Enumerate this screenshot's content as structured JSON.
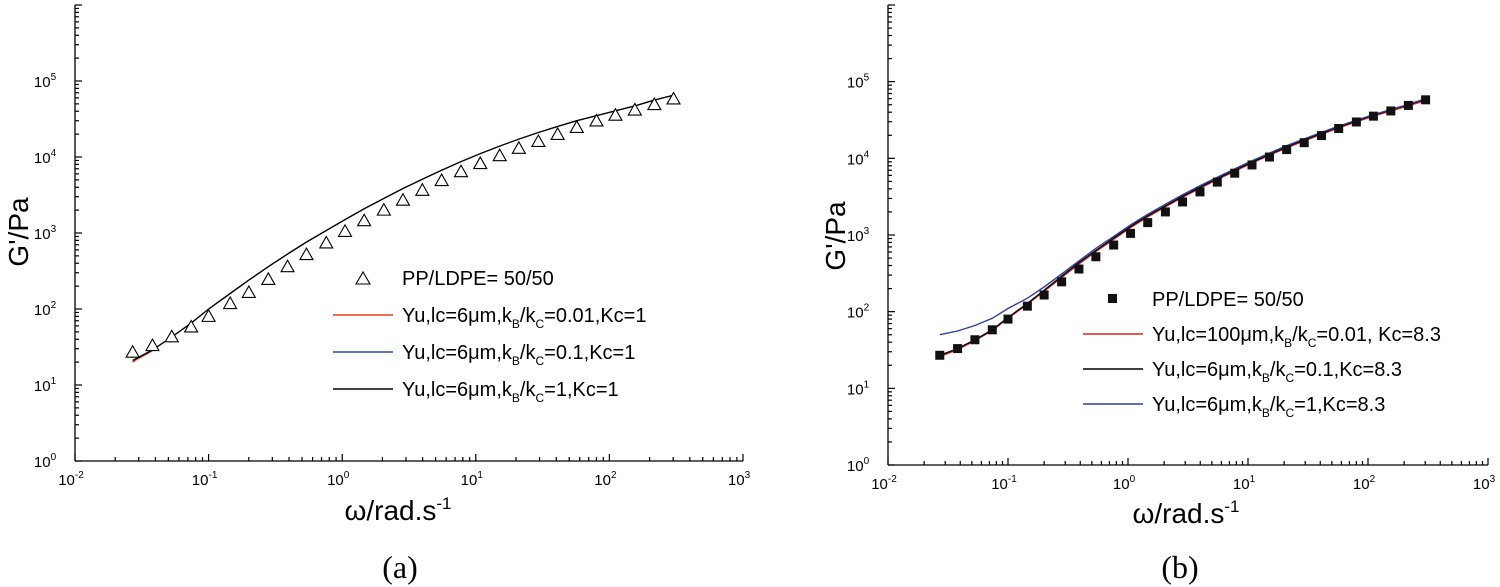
{
  "chart_data": [
    {
      "type": "scatter",
      "panel_label": "(a)",
      "xscale": "log",
      "yscale": "log",
      "xlim": [
        0.01,
        1000
      ],
      "ylim": [
        1,
        1000000
      ],
      "xlabel": "ω/rad.s",
      "xlabel_sup": "-1",
      "ylabel": "G'/Pa",
      "x_ticks": [
        {
          "base": "10",
          "exp": "-2"
        },
        {
          "base": "10",
          "exp": "-1"
        },
        {
          "base": "10",
          "exp": "0"
        },
        {
          "base": "10",
          "exp": "1"
        },
        {
          "base": "10",
          "exp": "2"
        },
        {
          "base": "10",
          "exp": "3"
        }
      ],
      "y_ticks": [
        {
          "base": "10",
          "exp": "0"
        },
        {
          "base": "10",
          "exp": "1"
        },
        {
          "base": "10",
          "exp": "2"
        },
        {
          "base": "10",
          "exp": "3"
        },
        {
          "base": "10",
          "exp": "4"
        },
        {
          "base": "10",
          "exp": "5"
        }
      ],
      "legend_position": "right-center",
      "markers": {
        "name": "PP/LDPE= 50/50",
        "marker": "open-triangle",
        "color": "#000000",
        "x": [
          0.027,
          0.038,
          0.053,
          0.074,
          0.1,
          0.145,
          0.2,
          0.28,
          0.39,
          0.54,
          0.76,
          1.05,
          1.46,
          2.05,
          2.85,
          3.98,
          5.55,
          7.75,
          10.8,
          15.1,
          21,
          29.4,
          41,
          57,
          80,
          111,
          155,
          217,
          302
        ],
        "y": [
          27,
          33,
          43,
          58,
          80,
          118,
          165,
          245,
          360,
          520,
          740,
          1050,
          1450,
          2000,
          2700,
          3650,
          4900,
          6400,
          8200,
          10400,
          13000,
          16000,
          19800,
          24500,
          29800,
          35500,
          41500,
          49000,
          58000
        ]
      },
      "series": [
        {
          "name": "Yu,lc=6μm,k_B/k_C=0.01,Kc=1",
          "legend_main": "Yu,lc=6μm,k",
          "legend_parts": [
            {
              "sub": "B"
            },
            {
              "text": "/k"
            },
            {
              "sub": "C"
            },
            {
              "text": "=0.01,Kc=1"
            }
          ],
          "color": "#e8401c",
          "x": [
            0.027,
            0.03,
            0.035,
            0.04
          ],
          "y": [
            20,
            22.5,
            26,
            30
          ]
        },
        {
          "name": "Yu,lc=6μm,k_B/k_C=0.1,Kc=1",
          "legend_main": "Yu,lc=6μm,k",
          "legend_parts": [
            {
              "sub": "B"
            },
            {
              "text": "/k"
            },
            {
              "sub": "C"
            },
            {
              "text": "=0.1,Kc=1"
            }
          ],
          "color": "#2c4aa6",
          "x": [],
          "y": []
        },
        {
          "name": "Yu,lc=6μm,k_B/k_C=1,Kc=1",
          "legend_main": "Yu,lc=6μm,k",
          "legend_parts": [
            {
              "sub": "B"
            },
            {
              "text": "/k"
            },
            {
              "sub": "C"
            },
            {
              "text": "=1,Kc=1"
            }
          ],
          "color": "#000000",
          "x": [
            0.027,
            0.038,
            0.053,
            0.074,
            0.1,
            0.145,
            0.2,
            0.28,
            0.39,
            0.54,
            0.76,
            1.05,
            1.46,
            2.05,
            2.85,
            3.98,
            5.55,
            7.75,
            10.8,
            15.1,
            21,
            29.4,
            41,
            57,
            80,
            111,
            155,
            217,
            302
          ],
          "y": [
            21,
            29,
            43,
            65,
            100,
            160,
            240,
            360,
            530,
            760,
            1080,
            1500,
            2080,
            2850,
            3850,
            5100,
            6700,
            8700,
            11100,
            13900,
            17200,
            21000,
            25300,
            30000,
            35000,
            40500,
            47000,
            56000,
            65000
          ]
        }
      ]
    },
    {
      "type": "scatter",
      "panel_label": "(b)",
      "xscale": "log",
      "yscale": "log",
      "xlim": [
        0.01,
        1000
      ],
      "ylim": [
        1,
        1000000
      ],
      "xlabel": "ω/rad.s",
      "xlabel_sup": "-1",
      "ylabel": "G'/Pa",
      "x_ticks": [
        {
          "base": "10",
          "exp": "-2"
        },
        {
          "base": "10",
          "exp": "-1"
        },
        {
          "base": "10",
          "exp": "0"
        },
        {
          "base": "10",
          "exp": "1"
        },
        {
          "base": "10",
          "exp": "2"
        },
        {
          "base": "10",
          "exp": "3"
        }
      ],
      "y_ticks": [
        {
          "base": "10",
          "exp": "0"
        },
        {
          "base": "10",
          "exp": "1"
        },
        {
          "base": "10",
          "exp": "2"
        },
        {
          "base": "10",
          "exp": "3"
        },
        {
          "base": "10",
          "exp": "4"
        },
        {
          "base": "10",
          "exp": "5"
        }
      ],
      "legend_position": "right-center",
      "markers": {
        "name": "PP/LDPE= 50/50",
        "marker": "filled-square",
        "color": "#111111",
        "x": [
          0.027,
          0.038,
          0.053,
          0.074,
          0.1,
          0.145,
          0.2,
          0.28,
          0.39,
          0.54,
          0.76,
          1.05,
          1.46,
          2.05,
          2.85,
          3.98,
          5.55,
          7.75,
          10.8,
          15.1,
          21,
          29.4,
          41,
          57,
          80,
          111,
          155,
          217,
          302
        ],
        "y": [
          27,
          33,
          43,
          58,
          80,
          118,
          165,
          245,
          360,
          520,
          740,
          1050,
          1450,
          2000,
          2700,
          3650,
          4900,
          6400,
          8200,
          10400,
          13000,
          16000,
          19800,
          24500,
          29800,
          35500,
          41500,
          49000,
          58000
        ]
      },
      "series": [
        {
          "name": "Yu,lc=100μm,k_B/k_C=0.01, Kc=8.3",
          "legend_main": "Yu,lc=100μm,k",
          "legend_parts": [
            {
              "sub": "B"
            },
            {
              "text": "/k"
            },
            {
              "sub": "C"
            },
            {
              "text": "=0.01, Kc=8.3"
            }
          ],
          "color": "#e02020",
          "x": [
            0.027,
            0.038,
            0.053,
            0.074,
            0.1,
            0.145,
            0.2,
            0.28,
            0.39,
            0.54,
            0.76,
            1.05,
            1.46,
            2.05,
            2.85,
            3.98,
            5.55,
            7.75,
            10.8,
            15.1,
            21,
            29.4,
            41,
            57,
            80,
            111,
            155,
            217,
            302
          ],
          "y": [
            26,
            32,
            42,
            57,
            82,
            125,
            185,
            280,
            420,
            610,
            880,
            1250,
            1720,
            2330,
            3100,
            4080,
            5300,
            6800,
            8700,
            11000,
            13700,
            16900,
            20600,
            25000,
            30000,
            35500,
            41500,
            48500,
            57000
          ]
        },
        {
          "name": "Yu,lc=6μm,k_B/k_C=0.1,Kc=8.3",
          "legend_main": "Yu,lc=6μm,k",
          "legend_parts": [
            {
              "sub": "B"
            },
            {
              "text": "/k"
            },
            {
              "sub": "C"
            },
            {
              "text": "=0.1,Kc=8.3"
            }
          ],
          "color": "#000000",
          "x": [
            0.027,
            0.038,
            0.053,
            0.074,
            0.1,
            0.145,
            0.2,
            0.28,
            0.39,
            0.54,
            0.76,
            1.05,
            1.46,
            2.05,
            2.85,
            3.98,
            5.55,
            7.75,
            10.8,
            15.1,
            21,
            29.4,
            41,
            57,
            80,
            111,
            155,
            217,
            302
          ],
          "y": [
            27,
            33,
            43,
            58,
            84,
            128,
            190,
            290,
            435,
            630,
            910,
            1290,
            1780,
            2400,
            3200,
            4200,
            5450,
            7000,
            8950,
            11300,
            14100,
            17400,
            21200,
            25700,
            30800,
            36500,
            42800,
            50000,
            59000
          ]
        },
        {
          "name": "Yu,lc=6μm,k_B/k_C=1,Kc=8.3",
          "legend_main": "Yu,lc=6μm,k",
          "legend_parts": [
            {
              "sub": "B"
            },
            {
              "text": "/k"
            },
            {
              "sub": "C"
            },
            {
              "text": "=1,Kc=8.3"
            }
          ],
          "color": "#2c3f9e",
          "x": [
            0.027,
            0.038,
            0.053,
            0.074,
            0.1,
            0.145,
            0.2,
            0.28,
            0.39,
            0.54,
            0.76,
            1.05,
            1.46,
            2.05,
            2.85,
            3.98,
            5.55,
            7.75,
            10.8,
            15.1,
            21,
            29.4,
            41,
            57,
            80,
            111,
            155,
            217,
            302
          ],
          "y": [
            50,
            56,
            66,
            82,
            110,
            150,
            210,
            310,
            460,
            670,
            960,
            1350,
            1860,
            2520,
            3350,
            4380,
            5680,
            7280,
            9280,
            11700,
            14600,
            17900,
            21800,
            26300,
            31400,
            37100,
            43400,
            50600,
            60000
          ]
        }
      ]
    }
  ]
}
